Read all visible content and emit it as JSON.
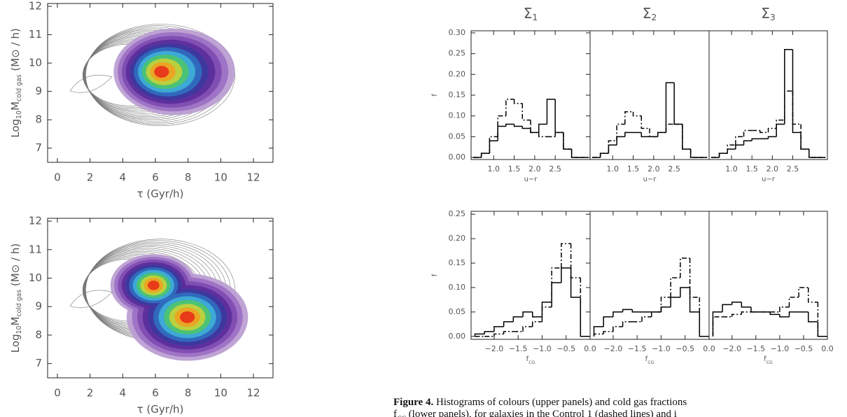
{
  "chart_data": [
    {
      "type": "contour",
      "xlim": [
        -0.6,
        13.2
      ],
      "ylim": [
        6.5,
        12.1
      ],
      "xticks": [
        0,
        2,
        4,
        6,
        8,
        10,
        12
      ],
      "yticks": [
        7,
        8,
        9,
        10,
        11,
        12
      ],
      "xlabel": [
        "τ (Gyr/h)"
      ],
      "ylabel": [
        "Log",
        "10",
        "M",
        "cold gas",
        " (M⊙ / h)"
      ]
    },
    {
      "type": "contour",
      "xlim": [
        -0.6,
        13.2
      ],
      "ylim": [
        6.5,
        12.1
      ],
      "xticks": [
        0,
        2,
        4,
        6,
        8,
        10,
        12
      ],
      "yticks": [
        7,
        8,
        9,
        10,
        11,
        12
      ],
      "xlabel": [
        "τ (Gyr/h)"
      ],
      "ylabel": [
        "Log",
        "10",
        "M",
        "cold gas",
        " (M⊙ / h)"
      ]
    },
    {
      "type": "histogram",
      "title": [
        "Σ",
        "1"
      ],
      "ylabel": [
        "f"
      ],
      "xlabel": [
        "u−r"
      ],
      "xlim": [
        0.45,
        3.35
      ],
      "ylim": [
        -0.005,
        0.305
      ],
      "xticks": [
        {
          "value": 1.0,
          "label": "1.0"
        },
        {
          "value": 1.5,
          "label": "1.5"
        },
        {
          "value": 2.0,
          "label": "2.0"
        },
        {
          "value": 2.5,
          "label": "2.5"
        }
      ],
      "yticks": [
        {
          "value": 0,
          "label": "0.00"
        },
        0.05,
        {
          "value": 0.1,
          "label": "0.10"
        },
        0.15,
        {
          "value": 0.2,
          "label": "0.20"
        },
        0.25,
        {
          "value": 0.3,
          "label": "0.30"
        }
      ],
      "bins": [
        0.5,
        0.7,
        0.9,
        1.1,
        1.3,
        1.5,
        1.7,
        1.9,
        2.1,
        2.3,
        2.5,
        2.7,
        2.9,
        3.1,
        3.3
      ],
      "series": [
        {
          "color": "#000",
          "dash": false,
          "values": [
            0,
            0.01,
            0.04,
            0.075,
            0.08,
            0.075,
            0.07,
            0.06,
            0.08,
            0.14,
            0.06,
            0.02,
            0,
            0
          ]
        },
        {
          "color": "#000",
          "dash": true,
          "values": [
            0,
            0.01,
            0.05,
            0.1,
            0.14,
            0.13,
            0.09,
            0.06,
            0.05,
            0.05,
            0.06,
            0.02,
            0,
            0
          ]
        }
      ]
    },
    {
      "type": "histogram",
      "title": [
        "Σ",
        "2"
      ],
      "xlabel": [
        "u−r"
      ],
      "xlim": [
        0.45,
        3.35
      ],
      "ylim": [
        -0.005,
        0.305
      ],
      "xticks": [
        {
          "value": 1.0,
          "label": "1.0"
        },
        {
          "value": 1.5,
          "label": "1.5"
        },
        {
          "value": 2.0,
          "label": "2.0"
        },
        {
          "value": 2.5,
          "label": "2.5"
        }
      ],
      "bins": [
        0.5,
        0.7,
        0.9,
        1.1,
        1.3,
        1.5,
        1.7,
        1.9,
        2.1,
        2.3,
        2.5,
        2.7,
        2.9,
        3.1,
        3.3
      ],
      "series": [
        {
          "color": "#000",
          "dash": false,
          "values": [
            0,
            0.01,
            0.03,
            0.05,
            0.06,
            0.06,
            0.05,
            0.05,
            0.06,
            0.18,
            0.08,
            0.02,
            0,
            0
          ]
        },
        {
          "color": "#000",
          "dash": true,
          "values": [
            0,
            0.01,
            0.04,
            0.08,
            0.11,
            0.1,
            0.07,
            0.05,
            0.06,
            0.08,
            0.08,
            0.02,
            0,
            0
          ]
        }
      ]
    },
    {
      "type": "histogram",
      "title": [
        "Σ",
        "3"
      ],
      "xlabel": [
        "u−r"
      ],
      "xlim": [
        0.45,
        3.35
      ],
      "ylim": [
        -0.005,
        0.305
      ],
      "xticks": [
        {
          "value": 1.0,
          "label": "1.0"
        },
        {
          "value": 1.5,
          "label": "1.5"
        },
        {
          "value": 2.0,
          "label": "2.0"
        },
        {
          "value": 2.5,
          "label": "2.5"
        }
      ],
      "bins": [
        0.5,
        0.7,
        0.9,
        1.1,
        1.3,
        1.5,
        1.7,
        1.9,
        2.1,
        2.3,
        2.5,
        2.7,
        2.9,
        3.1,
        3.3
      ],
      "series": [
        {
          "color": "#000",
          "dash": false,
          "values": [
            0,
            0.01,
            0.02,
            0.03,
            0.04,
            0.045,
            0.045,
            0.05,
            0.08,
            0.26,
            0.06,
            0.02,
            0,
            0
          ]
        },
        {
          "color": "#000",
          "dash": true,
          "values": [
            0,
            0.01,
            0.03,
            0.05,
            0.065,
            0.065,
            0.06,
            0.07,
            0.09,
            0.16,
            0.08,
            0.02,
            0,
            0
          ]
        }
      ]
    },
    {
      "type": "histogram",
      "ylabel": [
        "f"
      ],
      "xlabel": [
        "f",
        "CG"
      ],
      "xlim": [
        -2.48,
        0
      ],
      "ylim": [
        -0.006,
        0.256
      ],
      "xticks": [
        {
          "value": -2.0,
          "label": "−2.0"
        },
        {
          "value": -1.5,
          "label": "−1.5"
        },
        {
          "value": -1.0,
          "label": "−1.0"
        },
        {
          "value": -0.5,
          "label": "−0.5"
        },
        {
          "value": 0,
          "label": "0.0"
        }
      ],
      "yticks": [
        {
          "value": 0,
          "label": "0.00"
        },
        0.05,
        {
          "value": 0.1,
          "label": "0.10"
        },
        0.15,
        {
          "value": 0.2,
          "label": "0.20"
        },
        0.25
      ],
      "bins": [
        -2.4,
        -2.2,
        -2.0,
        -1.8,
        -1.6,
        -1.4,
        -1.2,
        -1.0,
        -0.8,
        -0.6,
        -0.4,
        -0.2,
        0
      ],
      "series": [
        {
          "color": "#000",
          "dash": false,
          "values": [
            0.005,
            0.01,
            0.02,
            0.03,
            0.04,
            0.05,
            0.04,
            0.07,
            0.11,
            0.14,
            0.08,
            0
          ]
        },
        {
          "color": "#000",
          "dash": true,
          "values": [
            0,
            0,
            0.005,
            0.01,
            0.01,
            0.02,
            0.03,
            0.06,
            0.14,
            0.19,
            0.12,
            0
          ]
        }
      ]
    },
    {
      "type": "histogram",
      "xlabel": [
        "f",
        "CG"
      ],
      "xlim": [
        -2.48,
        0
      ],
      "ylim": [
        -0.006,
        0.256
      ],
      "xticks": [
        {
          "value": -2.0,
          "label": "−2.0"
        },
        {
          "value": -1.5,
          "label": "−1.5"
        },
        {
          "value": -1.0,
          "label": "−1.0"
        },
        {
          "value": -0.5,
          "label": "−0.5"
        },
        {
          "value": 0,
          "label": "0.0"
        }
      ],
      "bins": [
        -2.4,
        -2.2,
        -2.0,
        -1.8,
        -1.6,
        -1.4,
        -1.2,
        -1.0,
        -0.8,
        -0.6,
        -0.4,
        -0.2,
        0
      ],
      "series": [
        {
          "color": "#000",
          "dash": false,
          "values": [
            0.02,
            0.04,
            0.05,
            0.055,
            0.05,
            0.05,
            0.05,
            0.06,
            0.08,
            0.1,
            0.05,
            0
          ]
        },
        {
          "color": "#000",
          "dash": true,
          "values": [
            0.005,
            0.01,
            0.02,
            0.03,
            0.03,
            0.04,
            0.05,
            0.08,
            0.12,
            0.16,
            0.08,
            0
          ]
        }
      ]
    },
    {
      "type": "histogram",
      "xlabel": [
        "f",
        "CG"
      ],
      "xlim": [
        -2.48,
        0
      ],
      "ylim": [
        -0.006,
        0.256
      ],
      "xticks": [
        {
          "value": -2.0,
          "label": "−2.0"
        },
        {
          "value": -1.5,
          "label": "−1.5"
        },
        {
          "value": -1.0,
          "label": "−1.0"
        },
        {
          "value": -0.5,
          "label": "−0.5"
        },
        {
          "value": 0,
          "label": "0.0"
        }
      ],
      "bins": [
        -2.4,
        -2.2,
        -2.0,
        -1.8,
        -1.6,
        -1.4,
        -1.2,
        -1.0,
        -0.8,
        -0.6,
        -0.4,
        -0.2,
        0
      ],
      "series": [
        {
          "color": "#000",
          "dash": false,
          "values": [
            0.05,
            0.065,
            0.07,
            0.06,
            0.05,
            0.05,
            0.045,
            0.04,
            0.05,
            0.05,
            0.03,
            0
          ]
        },
        {
          "color": "#000",
          "dash": true,
          "values": [
            0.04,
            0.04,
            0.045,
            0.05,
            0.05,
            0.05,
            0.05,
            0.06,
            0.08,
            0.1,
            0.07,
            0
          ]
        }
      ]
    }
  ],
  "caption": {
    "label": "Figure 4.",
    "line1": "Histograms of colours (upper panels) and cold gas fractions",
    "line2": [
      "f",
      "CG",
      " (lower panels), for galaxies in the Control 1 (dashed lines) and i"
    ]
  }
}
